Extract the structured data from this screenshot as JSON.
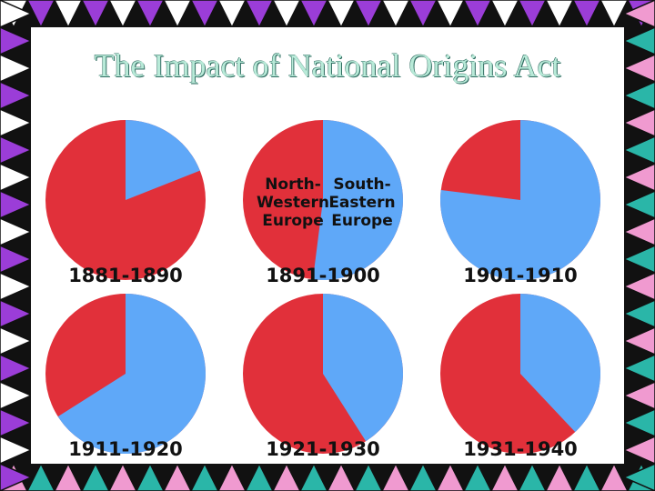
{
  "slide": {
    "title": "The Impact of National Origins Act"
  },
  "colors": {
    "north_western": "#e1303a",
    "south_eastern": "#5fa8f8",
    "border_colors": [
      "#2ab6a8",
      "#9b3dd8",
      "#f09ad0",
      "#ffffff",
      "#111111"
    ]
  },
  "chart_data": {
    "type": "pie",
    "series_labels": [
      {
        "name": "North-Western Europe",
        "lines": [
          "North-",
          "Western",
          "Europe"
        ],
        "color": "#e1303a"
      },
      {
        "name": "South-Eastern Europe",
        "lines": [
          "South-",
          "Eastern",
          "Europe"
        ],
        "color": "#5fa8f8"
      }
    ],
    "pies": [
      {
        "period": "1881-1890",
        "north_western": 81,
        "south_eastern": 19
      },
      {
        "period": "1891-1900",
        "north_western": 48,
        "south_eastern": 52
      },
      {
        "period": "1901-1910",
        "north_western": 23,
        "south_eastern": 77
      },
      {
        "period": "1911-1920",
        "north_western": 34,
        "south_eastern": 66
      },
      {
        "period": "1921-1930",
        "north_western": 59,
        "south_eastern": 41
      },
      {
        "period": "1931-1940",
        "north_western": 62,
        "south_eastern": 38
      }
    ]
  }
}
